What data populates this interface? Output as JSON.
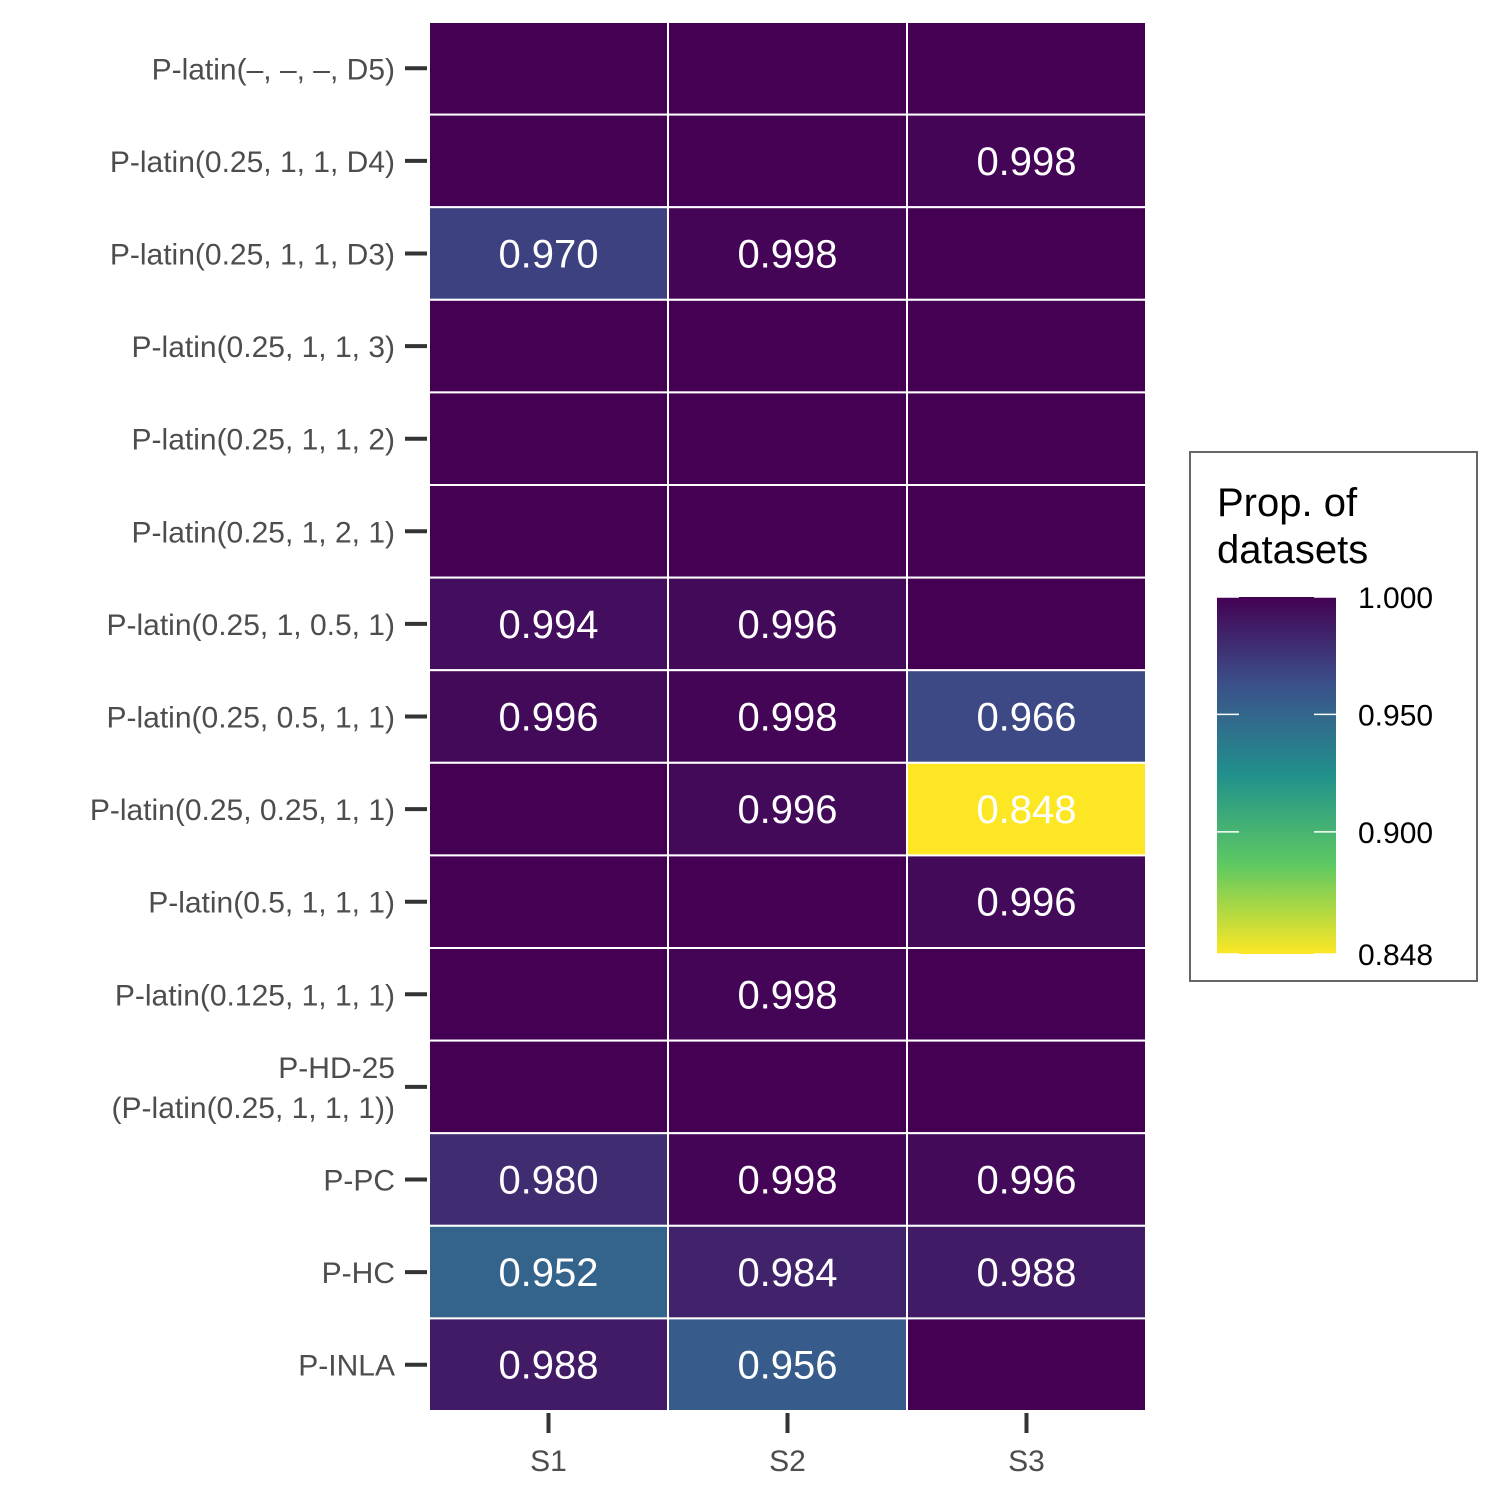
{
  "chart_data": {
    "type": "heatmap",
    "title": "",
    "xlabel": "",
    "ylabel": "",
    "x_categories": [
      "S1",
      "S2",
      "S3"
    ],
    "y_categories": [
      [
        "P-latin(–, –, –, D5)"
      ],
      [
        "P-latin(0.25, 1, 1, D4)"
      ],
      [
        "P-latin(0.25, 1, 1, D3)"
      ],
      [
        "P-latin(0.25, 1, 1, 3)"
      ],
      [
        "P-latin(0.25, 1, 1, 2)"
      ],
      [
        "P-latin(0.25, 1, 2, 1)"
      ],
      [
        "P-latin(0.25, 1, 0.5, 1)"
      ],
      [
        "P-latin(0.25, 0.5, 1, 1)"
      ],
      [
        "P-latin(0.25, 0.25, 1, 1)"
      ],
      [
        "P-latin(0.5, 1, 1, 1)"
      ],
      [
        "P-latin(0.125, 1, 1, 1)"
      ],
      [
        "P-HD-25",
        "(P-latin(0.25, 1, 1, 1))"
      ],
      [
        "P-PC"
      ],
      [
        "P-HC"
      ],
      [
        "P-INLA"
      ]
    ],
    "values": [
      [
        1.0,
        1.0,
        1.0
      ],
      [
        1.0,
        1.0,
        0.998
      ],
      [
        0.97,
        0.998,
        1.0
      ],
      [
        1.0,
        1.0,
        1.0
      ],
      [
        1.0,
        1.0,
        1.0
      ],
      [
        1.0,
        1.0,
        1.0
      ],
      [
        0.994,
        0.996,
        1.0
      ],
      [
        0.996,
        0.998,
        0.966
      ],
      [
        1.0,
        0.996,
        0.848
      ],
      [
        1.0,
        1.0,
        0.996
      ],
      [
        1.0,
        0.998,
        1.0
      ],
      [
        1.0,
        1.0,
        1.0
      ],
      [
        0.98,
        0.998,
        0.996
      ],
      [
        0.952,
        0.984,
        0.988
      ],
      [
        0.988,
        0.956,
        1.0
      ]
    ],
    "labels": [
      [
        "",
        "",
        ""
      ],
      [
        "",
        "",
        "0.998"
      ],
      [
        "0.970",
        "0.998",
        ""
      ],
      [
        "",
        "",
        ""
      ],
      [
        "",
        "",
        ""
      ],
      [
        "",
        "",
        ""
      ],
      [
        "0.994",
        "0.996",
        ""
      ],
      [
        "0.996",
        "0.998",
        "0.966"
      ],
      [
        "",
        "0.996",
        "0.848"
      ],
      [
        "",
        "",
        "0.996"
      ],
      [
        "",
        "0.998",
        ""
      ],
      [
        "",
        "",
        ""
      ],
      [
        "0.980",
        "0.998",
        "0.996"
      ],
      [
        "0.952",
        "0.984",
        "0.988"
      ],
      [
        "0.988",
        "0.956",
        ""
      ]
    ],
    "legend": {
      "title": [
        "Prop. of",
        "datasets"
      ],
      "position": "right",
      "min": 0.848,
      "max": 1.0,
      "ticks": [
        {
          "value": 1.0,
          "label": "1.000"
        },
        {
          "value": 0.95,
          "label": "0.950"
        },
        {
          "value": 0.9,
          "label": "0.900"
        },
        {
          "value": 0.848,
          "label": "0.848"
        }
      ]
    },
    "colormap": [
      "#440154",
      "#3b528b",
      "#21918c",
      "#5ec962",
      "#fde725"
    ]
  }
}
